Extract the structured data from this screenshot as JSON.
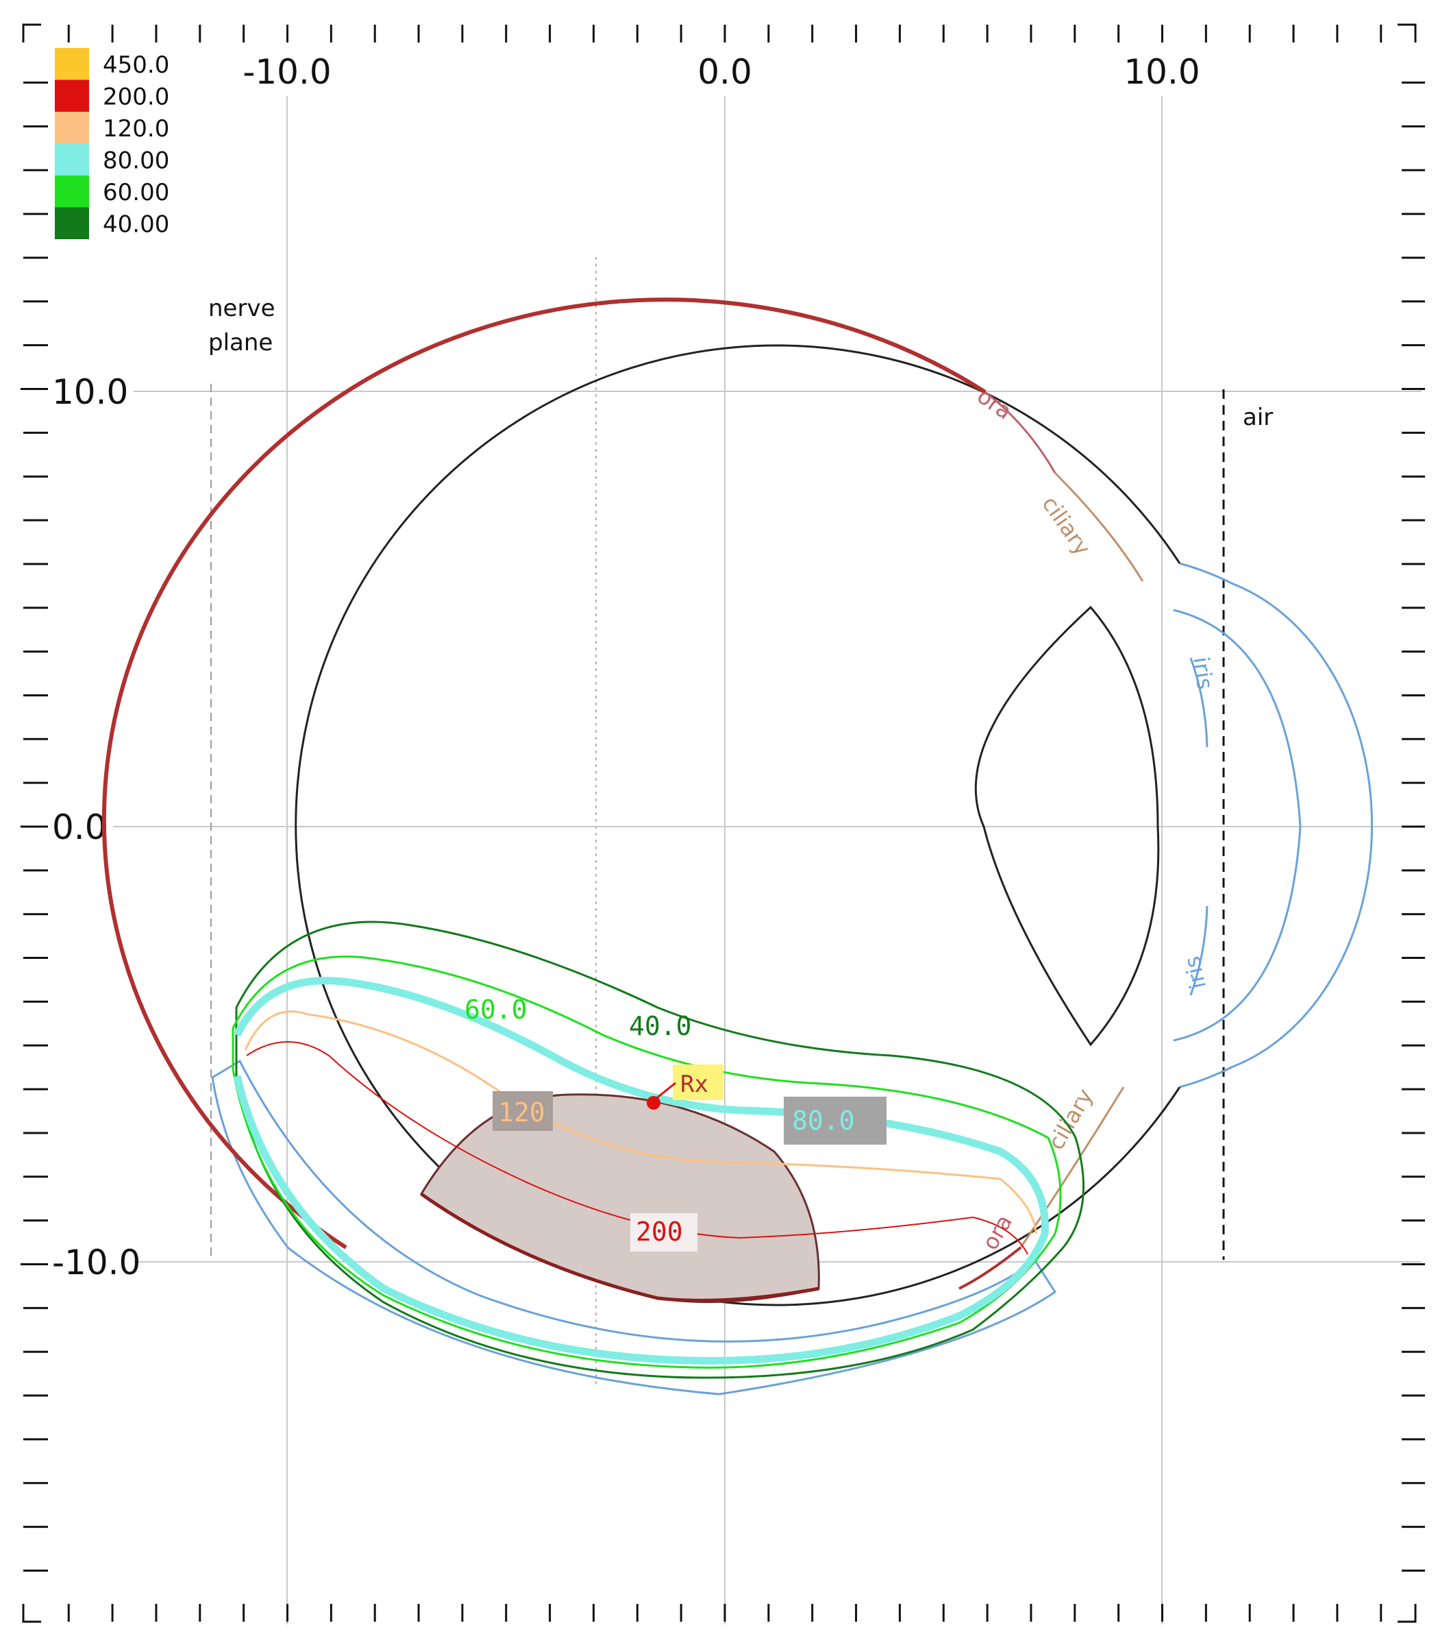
{
  "axes": {
    "x_ticks": [
      "-10.0",
      "0.0",
      "10.0"
    ],
    "y_ticks": [
      "10.0",
      "0.0",
      "-10.0"
    ]
  },
  "legend": [
    {
      "value": "450.0",
      "color": "#fbc72b"
    },
    {
      "value": "200.0",
      "color": "#dd1010"
    },
    {
      "value": "120.0",
      "color": "#fcc083"
    },
    {
      "value": "80.00",
      "color": "#80ede4"
    },
    {
      "value": "60.00",
      "color": "#1ee01e"
    },
    {
      "value": "40.00",
      "color": "#137a1b"
    }
  ],
  "annotations": {
    "nerve_plane": [
      "nerve",
      "plane"
    ],
    "air": "air",
    "ora": "ora",
    "ciliary": "ciliary",
    "iris": "iris",
    "rx": "Rx"
  },
  "isodose_labels": {
    "l60": "60.0",
    "l40": "40.0",
    "l120": "120",
    "l80": "80.0",
    "l200": "200"
  },
  "colors": {
    "sclera": "#222222",
    "retina": "#b03030",
    "ciliary": "#c0906a",
    "iris": "#6aa2d8",
    "tumor": "#d6cac6",
    "gridline": "#c8c8c8"
  }
}
